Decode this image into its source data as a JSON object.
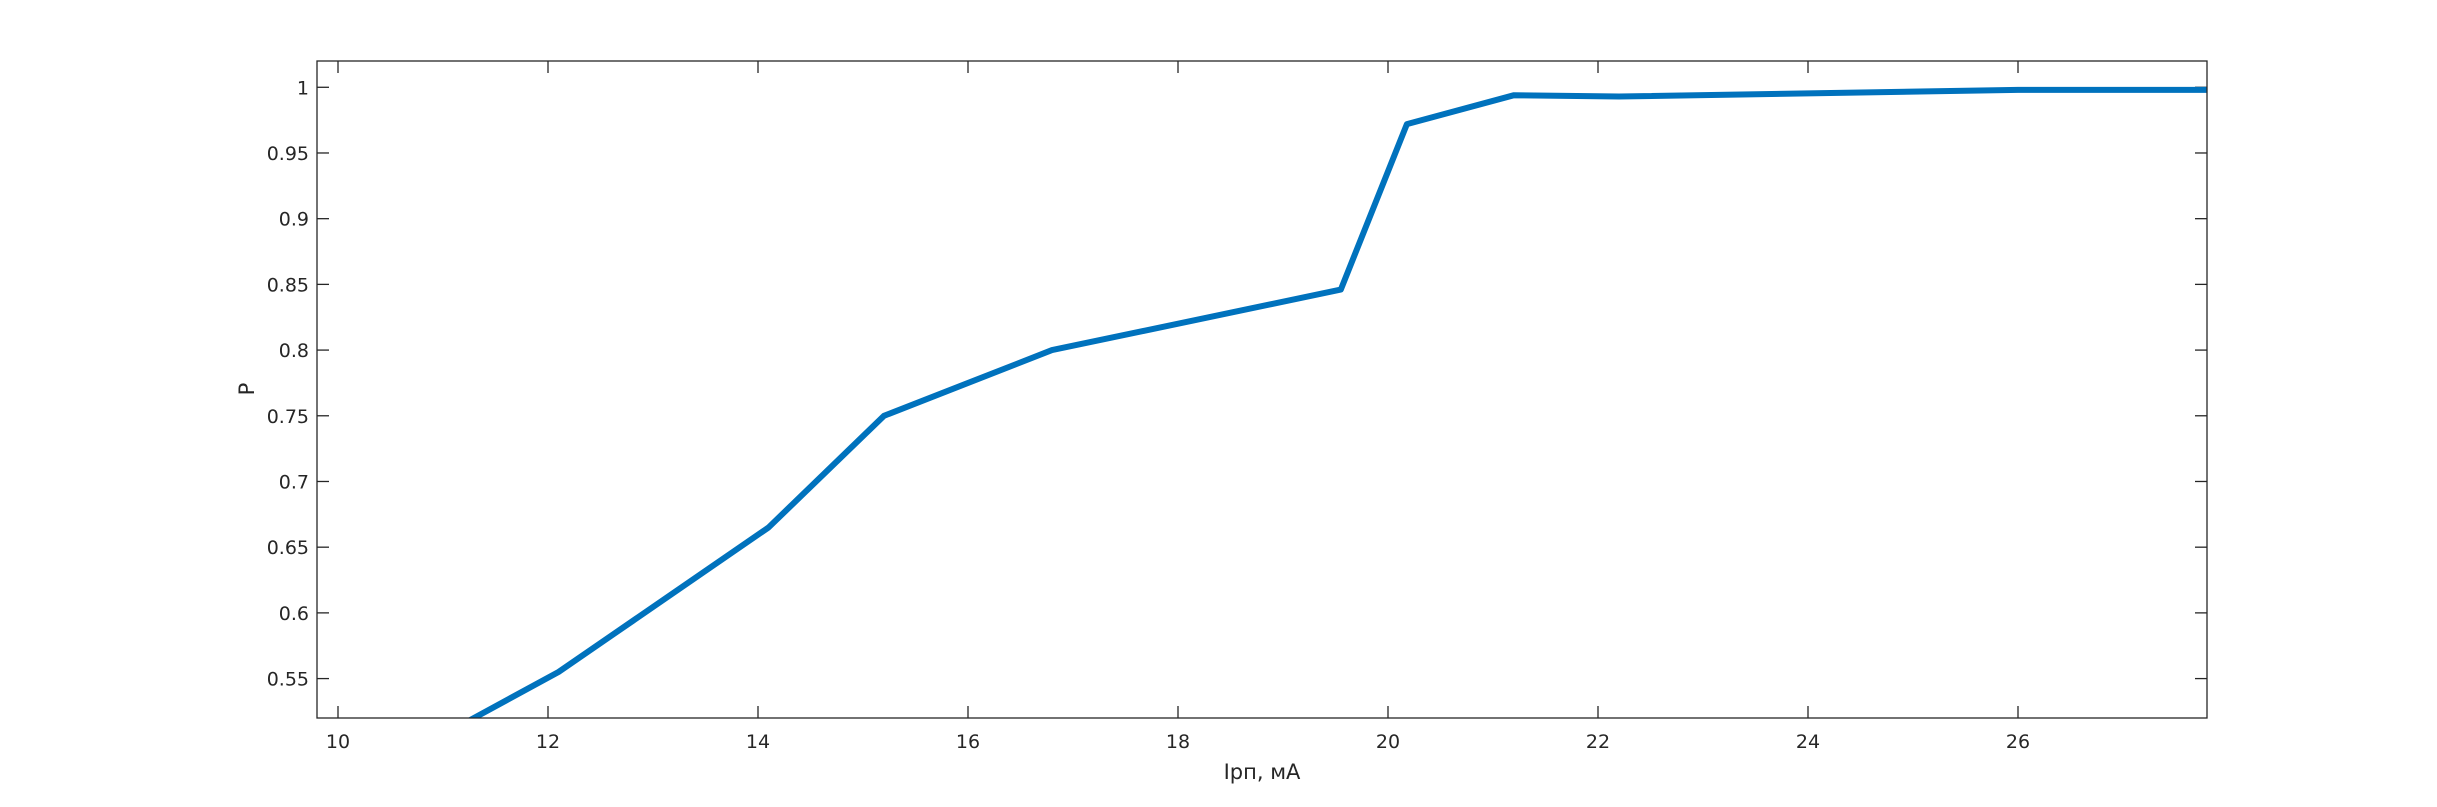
{
  "chart_data": {
    "type": "line",
    "title": "",
    "xlabel": "Iрп, мА",
    "ylabel": "P",
    "xlim": [
      9.8,
      27.8
    ],
    "ylim": [
      0.52,
      1.02
    ],
    "grid": false,
    "xticks": [
      10,
      12,
      14,
      16,
      18,
      20,
      22,
      24,
      26
    ],
    "xtick_labels": [
      "10",
      "12",
      "14",
      "16",
      "18",
      "20",
      "22",
      "24",
      "26"
    ],
    "yticks": [
      0.55,
      0.6,
      0.65,
      0.7,
      0.75,
      0.8,
      0.85,
      0.9,
      0.95,
      1
    ],
    "ytick_labels": [
      "0.55",
      "0.6",
      "0.65",
      "0.7",
      "0.75",
      "0.8",
      "0.85",
      "0.9",
      "0.95",
      "1"
    ],
    "series": [
      {
        "color": "#0072BD",
        "x": [
          9.8,
          12.1,
          14.1,
          15.2,
          16.8,
          19.55,
          20.18,
          21.2,
          22.2,
          26.0,
          27.8
        ],
        "y": [
          0.455,
          0.555,
          0.665,
          0.75,
          0.8,
          0.846,
          0.972,
          0.994,
          0.993,
          0.998,
          0.998
        ]
      }
    ]
  }
}
